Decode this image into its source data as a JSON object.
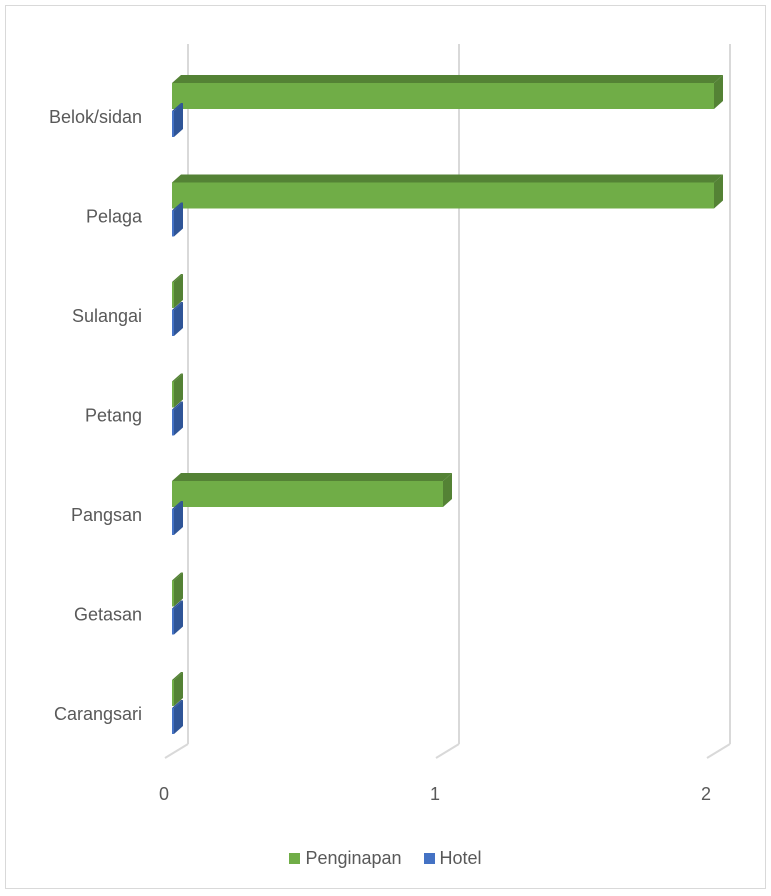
{
  "chart_data": {
    "type": "bar",
    "orientation": "horizontal",
    "style": "3d-clustered",
    "categories": [
      "Belok/sidan",
      "Pelaga",
      "Sulangai",
      "Petang",
      "Pangsan",
      "Getasan",
      "Carangsari"
    ],
    "series": [
      {
        "name": "Penginapan",
        "values": [
          2,
          2,
          0,
          0,
          1,
          0,
          0
        ],
        "color": "#70ad47",
        "top_color": "#548235"
      },
      {
        "name": "Hotel",
        "values": [
          0,
          0,
          0,
          0,
          0,
          0,
          0
        ],
        "color": "#4472c4",
        "top_color": "#2f5597"
      }
    ],
    "x_ticks": [
      "0",
      "1",
      "2"
    ],
    "xlim": [
      0,
      2
    ],
    "gridlines": true,
    "legend_position": "bottom",
    "title": "",
    "xlabel": "",
    "ylabel": ""
  }
}
